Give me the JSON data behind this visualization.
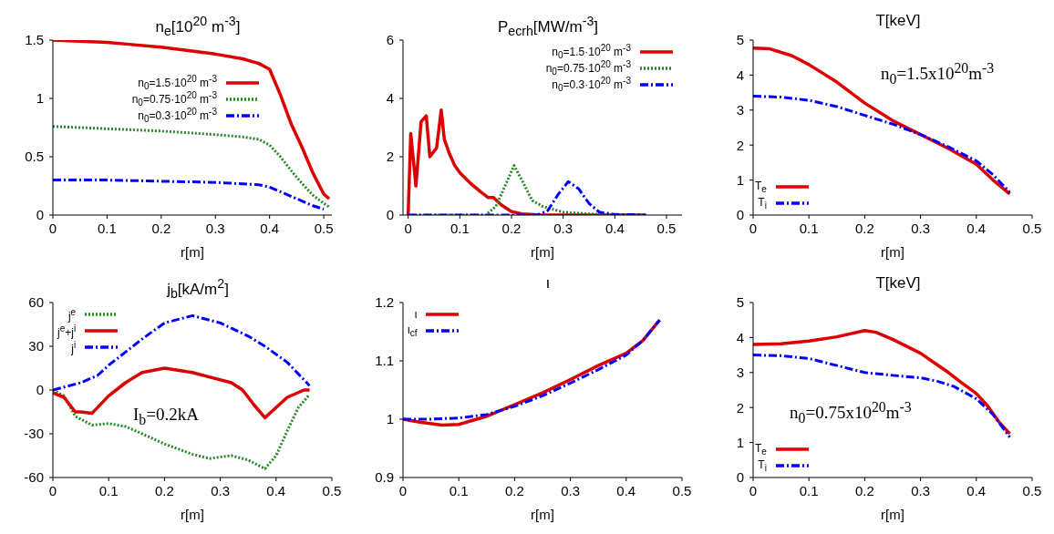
{
  "chart_data": [
    {
      "type": "line",
      "title": "n$_{e}$[10$^{20}$ m$^{-3}$]",
      "xlabel": "r[m]",
      "xlim": [
        0,
        0.515
      ],
      "xticks": [
        0,
        0.1,
        0.2,
        0.3,
        0.4,
        0.5
      ],
      "ylim": [
        0,
        1.5
      ],
      "yticks": [
        0,
        0.5,
        1,
        1.5
      ],
      "legend": "top right",
      "series": [
        {
          "name": "n$_{0}$=1.5·10$^{20}$ m$^{-3}$",
          "color": "#dd0000",
          "line_style": "solid",
          "x": [
            0,
            0.05,
            0.1,
            0.15,
            0.2,
            0.25,
            0.3,
            0.35,
            0.38,
            0.4,
            0.42,
            0.44,
            0.46,
            0.48,
            0.5,
            0.51
          ],
          "values": [
            1.5,
            1.49,
            1.48,
            1.46,
            1.44,
            1.41,
            1.38,
            1.34,
            1.3,
            1.25,
            1.03,
            0.78,
            0.58,
            0.36,
            0.18,
            0.14
          ]
        },
        {
          "name": "n$_{0}$=0.75·10$^{20}$ m$^{-3}$",
          "color": "#228b22",
          "line_style": "dotted",
          "x": [
            0,
            0.1,
            0.2,
            0.3,
            0.35,
            0.38,
            0.4,
            0.42,
            0.44,
            0.46,
            0.48,
            0.5,
            0.51
          ],
          "values": [
            0.76,
            0.74,
            0.72,
            0.69,
            0.67,
            0.65,
            0.6,
            0.5,
            0.38,
            0.27,
            0.17,
            0.1,
            0.07
          ]
        },
        {
          "name": "n$_{0}$=0.3·10$^{20}$ m$^{-3}$",
          "color": "#0000ff",
          "line_style": "dashed",
          "x": [
            0,
            0.1,
            0.2,
            0.3,
            0.38,
            0.4,
            0.42,
            0.44,
            0.46,
            0.48,
            0.5
          ],
          "values": [
            0.3,
            0.3,
            0.29,
            0.28,
            0.26,
            0.24,
            0.2,
            0.16,
            0.12,
            0.08,
            0.05
          ]
        }
      ]
    },
    {
      "type": "line",
      "title": "P$_{ecrh}$[MW/m$^{-3}$]",
      "xlabel": "r[m]",
      "xlim": [
        -0.01,
        0.53
      ],
      "xticks": [
        0,
        0.1,
        0.2,
        0.3,
        0.4,
        0.5
      ],
      "ylim": [
        0,
        6
      ],
      "yticks": [
        0,
        2,
        4,
        6
      ],
      "legend": "top right",
      "series": [
        {
          "name": "n$_{0}$=1.5·10$^{20}$ m$^{-3}$",
          "color": "#dd0000",
          "line_style": "solid",
          "x": [
            0,
            0.005,
            0.015,
            0.025,
            0.035,
            0.042,
            0.055,
            0.064,
            0.07,
            0.08,
            0.09,
            0.1,
            0.12,
            0.14,
            0.155,
            0.165,
            0.18,
            0.2,
            0.22,
            0.25,
            0.3,
            0.46
          ],
          "values": [
            0,
            2.8,
            1.0,
            3.2,
            3.4,
            2.0,
            2.3,
            3.6,
            2.6,
            2.1,
            1.7,
            1.45,
            1.1,
            0.8,
            0.6,
            0.6,
            0.35,
            0.12,
            0.04,
            0.01,
            0,
            0
          ]
        },
        {
          "name": "n$_{0}$=0.75·10$^{20}$ m$^{-3}$",
          "color": "#228b22",
          "line_style": "dotted",
          "x": [
            0,
            0.15,
            0.17,
            0.19,
            0.205,
            0.22,
            0.24,
            0.26,
            0.28,
            0.3,
            0.35,
            0.4,
            0.46
          ],
          "values": [
            0,
            0,
            0.3,
            1.1,
            1.7,
            1.2,
            0.5,
            0.3,
            0.2,
            0.1,
            0.04,
            0.01,
            0
          ]
        },
        {
          "name": "n$_{0}$=0.3·10$^{20}$ m$^{-3}$",
          "color": "#0000ff",
          "line_style": "dashed",
          "x": [
            0,
            0.25,
            0.27,
            0.29,
            0.31,
            0.33,
            0.35,
            0.37,
            0.4,
            0.46
          ],
          "values": [
            0,
            0,
            0.15,
            0.7,
            1.15,
            0.9,
            0.4,
            0.1,
            0.02,
            0
          ]
        }
      ]
    },
    {
      "type": "line",
      "title": "T[keV]",
      "xlabel": "r[m]",
      "xlim": [
        0,
        0.5
      ],
      "xticks": [
        0,
        0.1,
        0.2,
        0.3,
        0.4,
        0.5
      ],
      "ylim": [
        0,
        5
      ],
      "yticks": [
        0,
        1,
        2,
        3,
        4,
        5
      ],
      "legend": "bottom left",
      "annotations": [
        "n$_{0}$=1.5x10$^{20}$m$^{-3}$"
      ],
      "series": [
        {
          "name": "T$_{e}$",
          "color": "#dd0000",
          "line_style": "solid",
          "x": [
            0,
            0.03,
            0.07,
            0.1,
            0.15,
            0.2,
            0.25,
            0.3,
            0.35,
            0.4,
            0.43,
            0.46
          ],
          "values": [
            4.77,
            4.75,
            4.55,
            4.3,
            3.8,
            3.2,
            2.7,
            2.3,
            1.9,
            1.45,
            1.0,
            0.6
          ]
        },
        {
          "name": "T$_{i}$",
          "color": "#0000ff",
          "line_style": "dashed",
          "x": [
            0,
            0.05,
            0.1,
            0.15,
            0.2,
            0.25,
            0.3,
            0.35,
            0.4,
            0.43,
            0.46
          ],
          "values": [
            3.4,
            3.37,
            3.28,
            3.1,
            2.85,
            2.6,
            2.3,
            1.95,
            1.55,
            1.15,
            0.65
          ]
        }
      ]
    },
    {
      "type": "line",
      "title": "j$_{b}$[kA/m$^{2}$]",
      "xlabel": "r[m]",
      "xlim": [
        0,
        0.5
      ],
      "xticks": [
        0,
        0.1,
        0.2,
        0.3,
        0.4,
        0.5
      ],
      "ylim": [
        -60,
        60
      ],
      "yticks": [
        -60,
        -30,
        0,
        30,
        60
      ],
      "legend": "top left",
      "annotations": [
        "I$_{b}$=0.2kA"
      ],
      "series": [
        {
          "name": "j$^{e}$",
          "color": "#228b22",
          "line_style": "dotted",
          "x": [
            0,
            0.02,
            0.04,
            0.07,
            0.1,
            0.13,
            0.16,
            0.2,
            0.25,
            0.28,
            0.32,
            0.35,
            0.38,
            0.4,
            0.42,
            0.44,
            0.46
          ],
          "values": [
            0,
            -4,
            -18,
            -24,
            -23,
            -25,
            -30,
            -37,
            -44,
            -47,
            -45,
            -48,
            -54,
            -45,
            -28,
            -12,
            -3
          ]
        },
        {
          "name": "j$^{e}$+j$^{i}$",
          "color": "#dd0000",
          "line_style": "solid",
          "x": [
            0,
            0.02,
            0.04,
            0.05,
            0.07,
            0.1,
            0.13,
            0.16,
            0.2,
            0.25,
            0.28,
            0.32,
            0.34,
            0.36,
            0.38,
            0.4,
            0.42,
            0.45,
            0.46
          ],
          "values": [
            -2,
            -5,
            -15,
            -15,
            -16,
            -4,
            5,
            12,
            15,
            12,
            9,
            5,
            0,
            -10,
            -19,
            -12,
            -5,
            0,
            0
          ]
        },
        {
          "name": "j$^{i}$",
          "color": "#0000ff",
          "line_style": "dashed",
          "x": [
            0,
            0.05,
            0.08,
            0.1,
            0.13,
            0.16,
            0.2,
            0.25,
            0.3,
            0.35,
            0.38,
            0.42,
            0.44,
            0.46
          ],
          "values": [
            0,
            5,
            10,
            17,
            26,
            35,
            46,
            51,
            46,
            37,
            30,
            19,
            11,
            3
          ]
        }
      ]
    },
    {
      "type": "line",
      "title": "ι",
      "xlabel": "r[m]",
      "xlim": [
        0,
        0.5
      ],
      "xticks": [
        0,
        0.1,
        0.2,
        0.3,
        0.4,
        0.5
      ],
      "ylim": [
        0.9,
        1.2
      ],
      "yticks": [
        0.9,
        1,
        1.1,
        1.2
      ],
      "legend": "top left",
      "series": [
        {
          "name": "ι",
          "color": "#dd0000",
          "line_style": "solid",
          "x": [
            0,
            0.03,
            0.07,
            0.1,
            0.15,
            0.2,
            0.25,
            0.3,
            0.35,
            0.4,
            0.43,
            0.46
          ],
          "values": [
            1.0,
            0.995,
            0.99,
            0.991,
            1.005,
            1.025,
            1.045,
            1.068,
            1.092,
            1.113,
            1.135,
            1.17
          ]
        },
        {
          "name": "ι$_{cf}$",
          "color": "#0000ff",
          "line_style": "dashed",
          "x": [
            0,
            0.05,
            0.1,
            0.15,
            0.2,
            0.25,
            0.3,
            0.35,
            0.4,
            0.43,
            0.46
          ],
          "values": [
            1.0,
            1.0,
            1.002,
            1.008,
            1.022,
            1.04,
            1.062,
            1.085,
            1.11,
            1.135,
            1.17
          ]
        }
      ]
    },
    {
      "type": "line",
      "title": "T[keV]",
      "xlabel": "r[m]",
      "xlim": [
        0,
        0.5
      ],
      "xticks": [
        0,
        0.1,
        0.2,
        0.3,
        0.4,
        0.5
      ],
      "ylim": [
        0,
        5
      ],
      "yticks": [
        0,
        1,
        2,
        3,
        4,
        5
      ],
      "legend": "bottom left",
      "annotations": [
        "n$_{0}$=0.75x10$^{20}$m$^{-3}$"
      ],
      "series": [
        {
          "name": "T$_{e}$",
          "color": "#dd0000",
          "line_style": "solid",
          "x": [
            0,
            0.05,
            0.1,
            0.15,
            0.2,
            0.22,
            0.25,
            0.3,
            0.35,
            0.37,
            0.4,
            0.42,
            0.44,
            0.46
          ],
          "values": [
            3.8,
            3.82,
            3.9,
            4.02,
            4.2,
            4.15,
            3.95,
            3.55,
            3.0,
            2.75,
            2.4,
            2.05,
            1.6,
            1.25
          ]
        },
        {
          "name": "T$_{i}$",
          "color": "#0000ff",
          "line_style": "dashed",
          "x": [
            0,
            0.05,
            0.1,
            0.15,
            0.2,
            0.25,
            0.3,
            0.33,
            0.36,
            0.4,
            0.43,
            0.46
          ],
          "values": [
            3.5,
            3.48,
            3.4,
            3.2,
            3.0,
            2.92,
            2.85,
            2.75,
            2.6,
            2.25,
            1.8,
            1.15
          ]
        }
      ]
    }
  ]
}
